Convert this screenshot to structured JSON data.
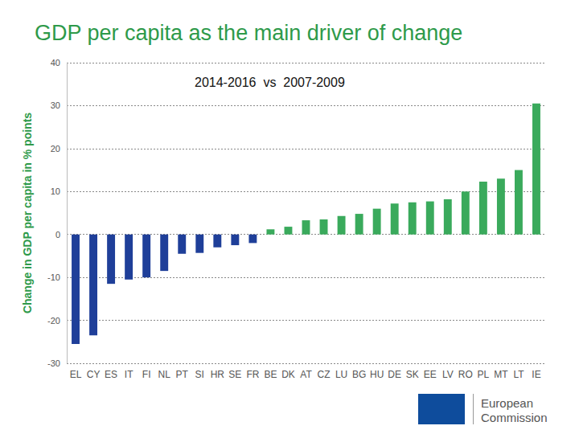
{
  "chart_data": {
    "type": "bar",
    "title": "GDP per capita as the main driver of change",
    "subtitle": "2014-2016  vs  2007-2009",
    "y_label": "Change in GDP per capita in % points",
    "source": "European Commission",
    "categories": [
      "EL",
      "CY",
      "ES",
      "IT",
      "FI",
      "NL",
      "PT",
      "SI",
      "HR",
      "SE",
      "FR",
      "BE",
      "DK",
      "AT",
      "CZ",
      "LU",
      "BG",
      "HU",
      "DE",
      "SK",
      "EE",
      "LV",
      "RO",
      "PL",
      "MT",
      "LT",
      "IE"
    ],
    "values": [
      -25.5,
      -23.5,
      -11.5,
      -10.5,
      -10,
      -8.5,
      -4.5,
      -4.3,
      -3,
      -2.5,
      -2,
      1.2,
      1.8,
      3.3,
      3.5,
      4.3,
      4.8,
      6,
      7.2,
      7.5,
      7.7,
      8.2,
      10,
      12.3,
      13,
      15,
      30.5
    ],
    "colors": [
      "#1f3f99",
      "#1f3f99",
      "#1f3f99",
      "#1f3f99",
      "#1f3f99",
      "#1f3f99",
      "#1f3f99",
      "#1f3f99",
      "#1f3f99",
      "#1f3f99",
      "#1f3f99",
      "#3aaa5c",
      "#3aaa5c",
      "#3aaa5c",
      "#3aaa5c",
      "#3aaa5c",
      "#3aaa5c",
      "#3aaa5c",
      "#3aaa5c",
      "#3aaa5c",
      "#3aaa5c",
      "#3aaa5c",
      "#3aaa5c",
      "#3aaa5c",
      "#3aaa5c",
      "#3aaa5c",
      "#3aaa5c"
    ],
    "ylim": [
      -30,
      40
    ],
    "yticks": [
      -30,
      -20,
      -10,
      0,
      10,
      20,
      30,
      40
    ],
    "grid": true
  }
}
